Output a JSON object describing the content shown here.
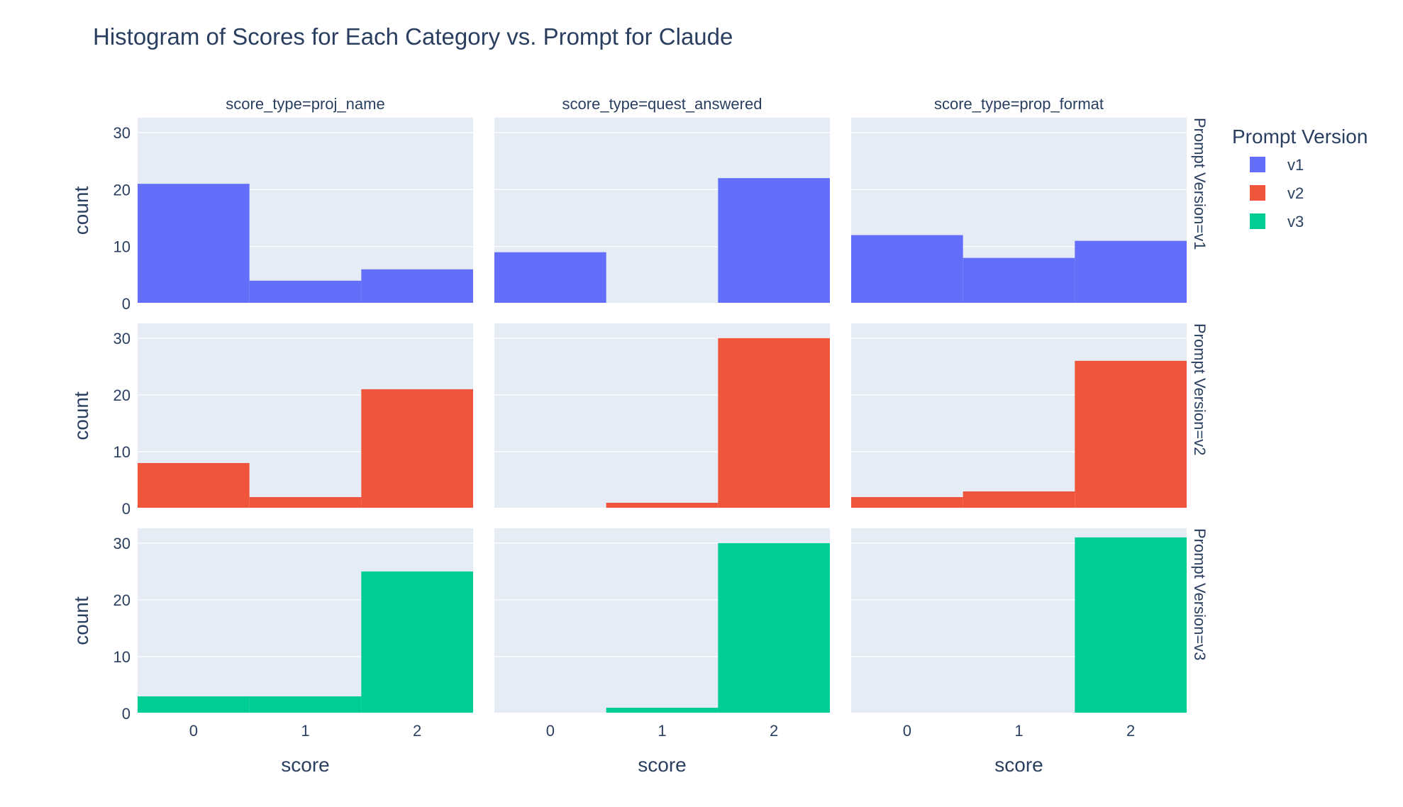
{
  "chart_data": {
    "type": "bar",
    "title": "Histogram of Scores for Each Category vs. Prompt for Claude",
    "xlabel": "score",
    "ylabel": "count",
    "categories": [
      "0",
      "1",
      "2"
    ],
    "ylim": [
      0,
      32.6
    ],
    "yticks": [
      "0",
      "10",
      "20",
      "30"
    ],
    "columns": [
      {
        "key": "proj_name",
        "label": "score_type=proj_name"
      },
      {
        "key": "quest_answered",
        "label": "score_type=quest_answered"
      },
      {
        "key": "prop_format",
        "label": "score_type=prop_format"
      }
    ],
    "rows": [
      {
        "key": "v1",
        "label": "Prompt Version=v1",
        "color": "#636efa"
      },
      {
        "key": "v2",
        "label": "Prompt Version=v2",
        "color": "#ef553b"
      },
      {
        "key": "v3",
        "label": "Prompt Version=v3",
        "color": "#00cc96"
      }
    ],
    "values": {
      "v1": {
        "proj_name": [
          21,
          4,
          6
        ],
        "quest_answered": [
          9,
          0,
          22
        ],
        "prop_format": [
          12,
          8,
          11
        ]
      },
      "v2": {
        "proj_name": [
          8,
          2,
          21
        ],
        "quest_answered": [
          0,
          1,
          30
        ],
        "prop_format": [
          2,
          3,
          26
        ]
      },
      "v3": {
        "proj_name": [
          3,
          3,
          25
        ],
        "quest_answered": [
          0,
          1,
          30
        ],
        "prop_format": [
          0,
          0,
          31
        ]
      }
    },
    "legend": {
      "title": "Prompt Version",
      "position": "top-right",
      "entries": [
        {
          "label": "v1",
          "color": "#636efa"
        },
        {
          "label": "v2",
          "color": "#ef553b"
        },
        {
          "label": "v3",
          "color": "#00cc96"
        }
      ]
    }
  }
}
